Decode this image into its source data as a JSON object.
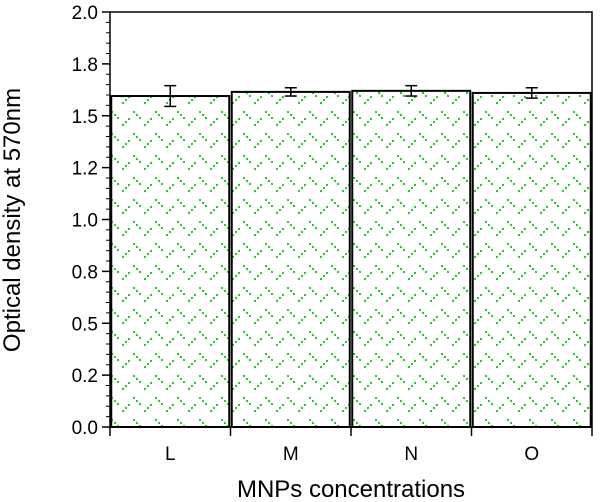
{
  "chart_data": {
    "type": "bar",
    "title": "",
    "xlabel": "MNPs concentrations",
    "ylabel": "Optical density at 570nm",
    "categories": [
      "L",
      "M",
      "N",
      "O"
    ],
    "values": [
      1.595,
      1.615,
      1.62,
      1.61
    ],
    "errors": [
      0.05,
      0.02,
      0.025,
      0.025
    ],
    "ylim": [
      0.0,
      2.0
    ],
    "yticks": [
      "0.0",
      "0.2",
      "0.5",
      "0.8",
      "1.0",
      "1.2",
      "1.5",
      "1.8",
      "2.0"
    ],
    "ytick_values": [
      0.0,
      0.25,
      0.5,
      0.75,
      1.0,
      1.25,
      1.5,
      1.75,
      2.0
    ],
    "grid": false,
    "legend": "none",
    "bar_fill": "#ffffff",
    "bar_pattern_color": "#22cc22",
    "bar_edge_color": "#000000"
  }
}
